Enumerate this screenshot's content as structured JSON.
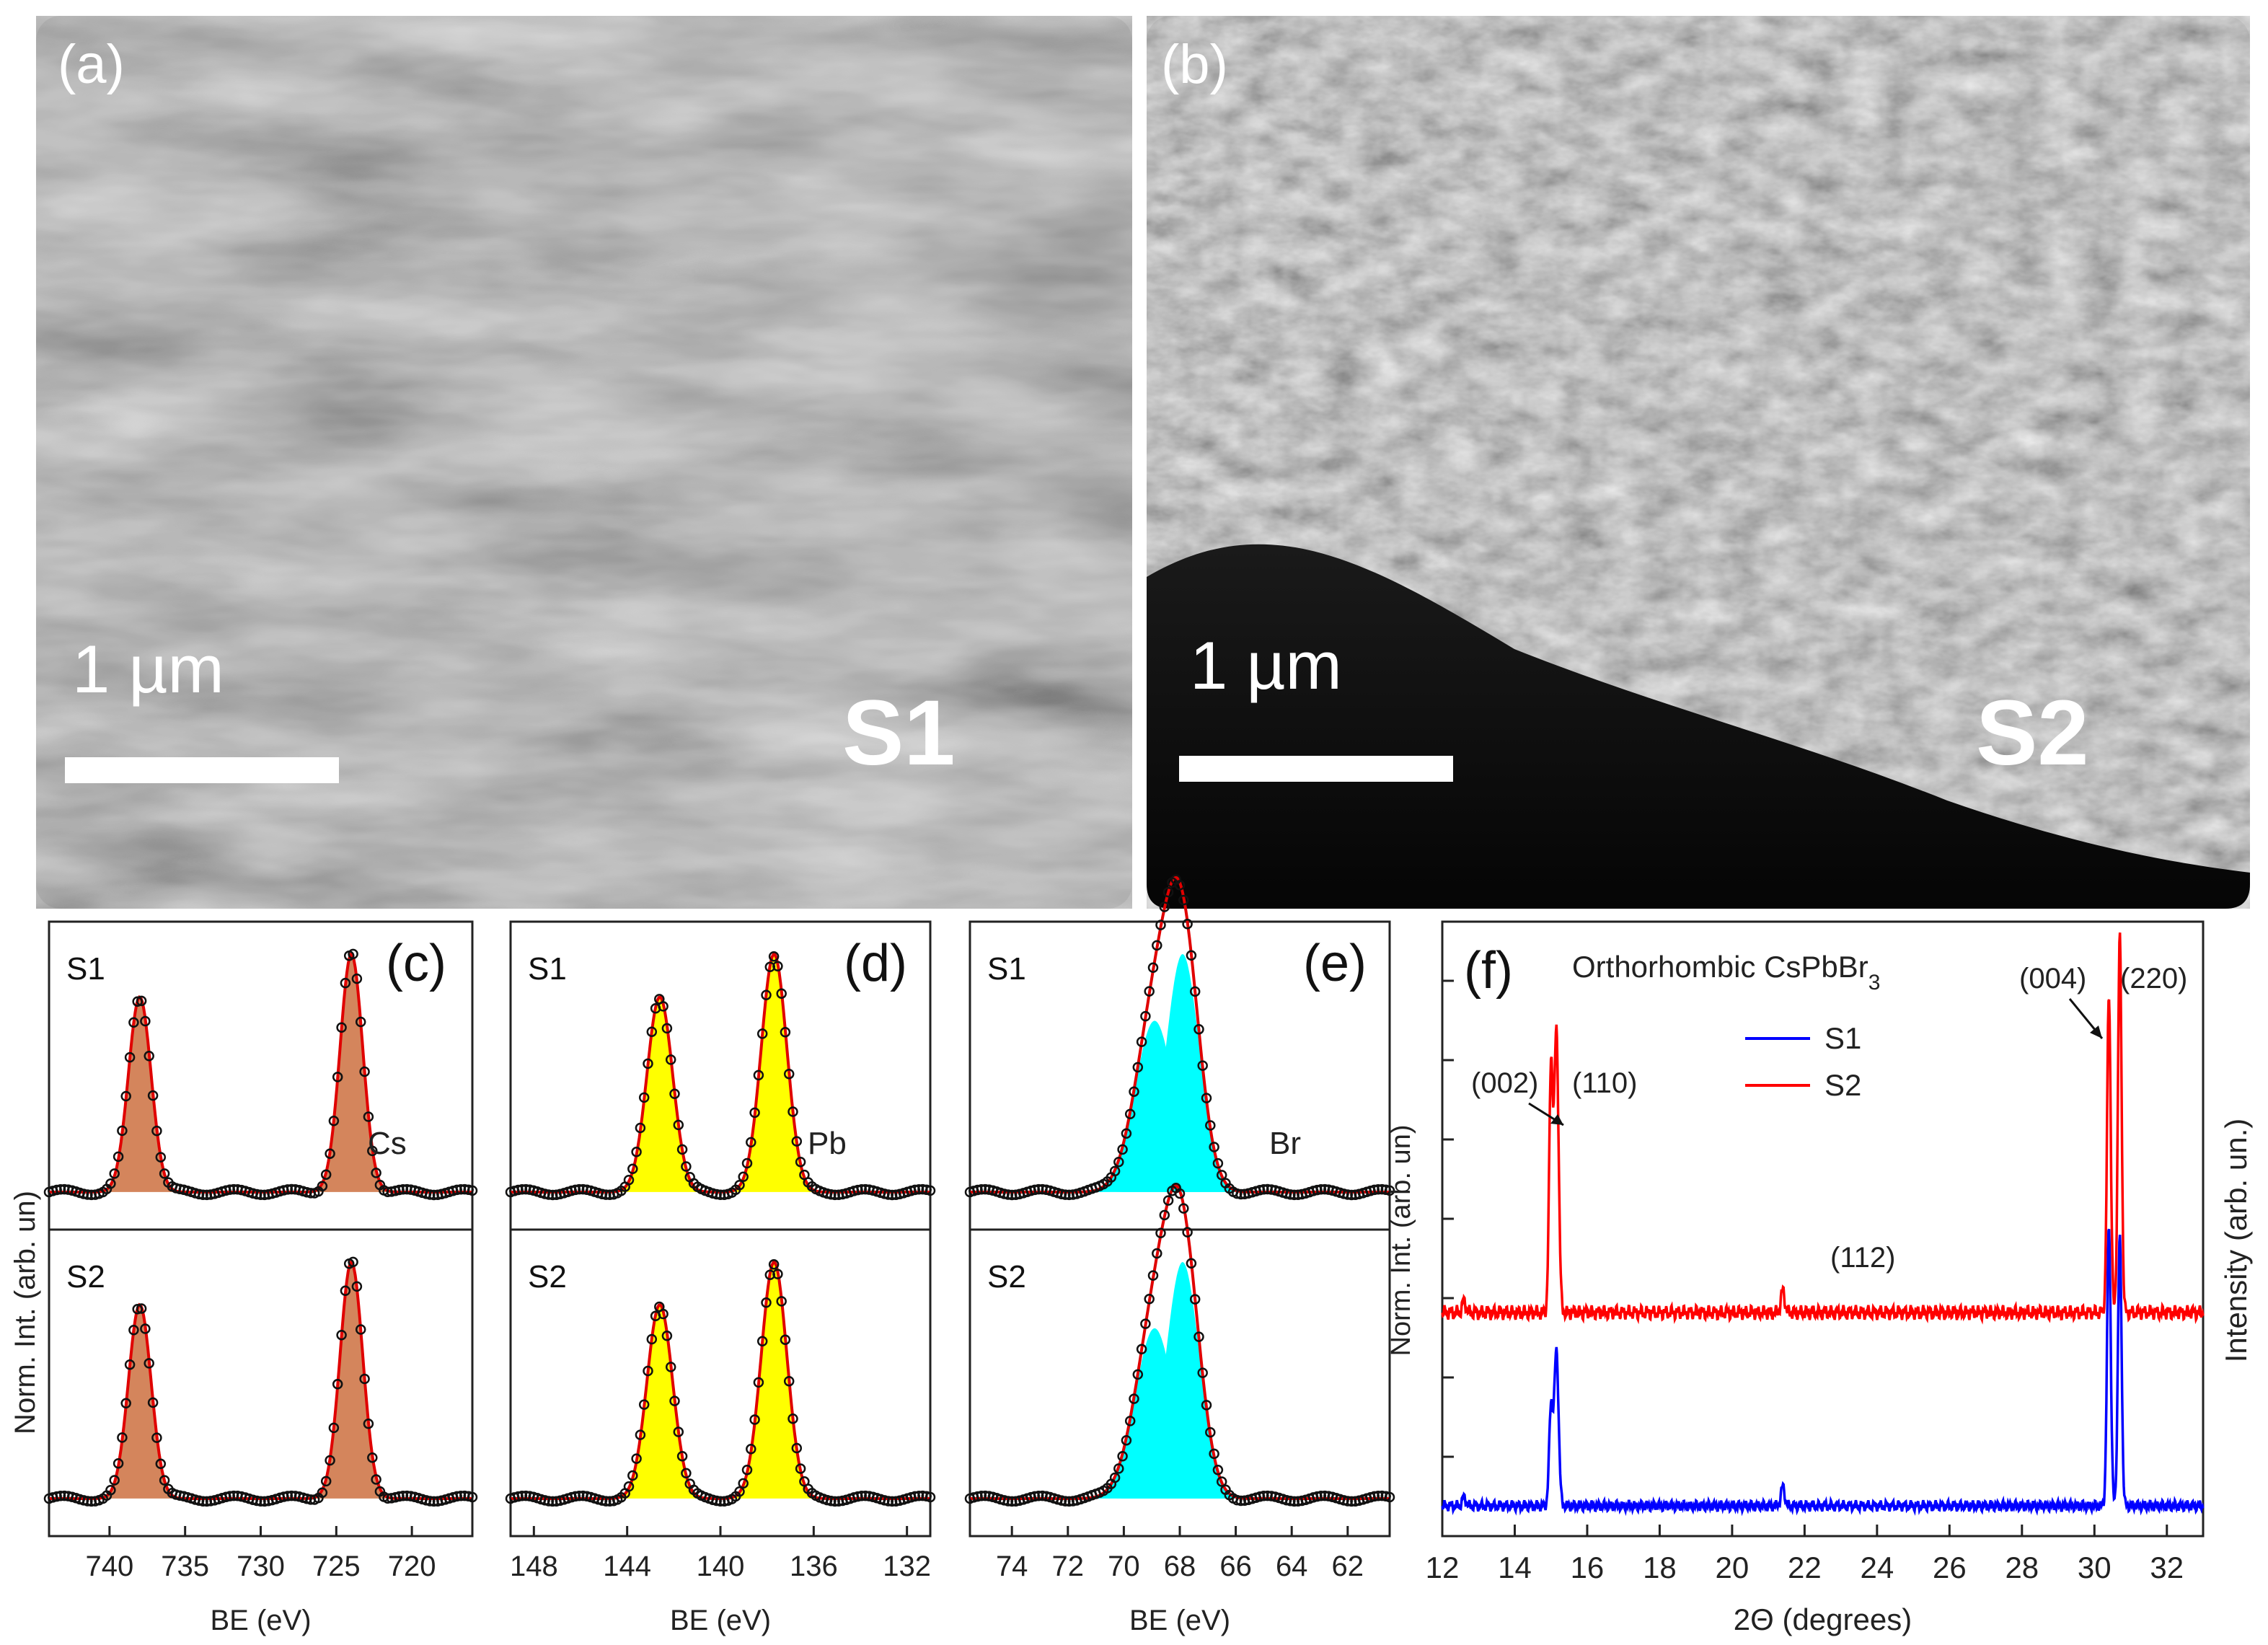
{
  "panels": {
    "a": {
      "label": "(a)",
      "scalebar": "1 µm",
      "sample": "S1"
    },
    "b": {
      "label": "(b)",
      "scalebar": "1 µm",
      "sample": "S2"
    },
    "c": {
      "label": "(c)",
      "element": "Cs",
      "top_sample": "S1",
      "bottom_sample": "S2",
      "ylabel": "Norm. Int. (arb. un)",
      "xlabel": "BE (eV)",
      "ticks": [
        "740",
        "735",
        "730",
        "725",
        "720"
      ],
      "tick_values": [
        740,
        735,
        730,
        725,
        720
      ],
      "xlim": [
        744,
        716
      ],
      "fill": "#d4855c",
      "peaks": [
        738.0,
        724.0
      ]
    },
    "d": {
      "label": "(d)",
      "element": "Pb",
      "top_sample": "S1",
      "bottom_sample": "S2",
      "xlabel": "BE (eV)",
      "ticks": [
        "148",
        "144",
        "140",
        "136",
        "132"
      ],
      "tick_values": [
        148,
        144,
        140,
        136,
        132
      ],
      "xlim": [
        149,
        131
      ],
      "fill": "#ffff00",
      "peaks": [
        142.6,
        137.7
      ]
    },
    "e": {
      "label": "(e)",
      "element": "Br",
      "top_sample": "S1",
      "bottom_sample": "S2",
      "xlabel": "BE (eV)",
      "ticks": [
        "74",
        "72",
        "70",
        "68",
        "66",
        "64",
        "62"
      ],
      "tick_values": [
        74,
        72,
        70,
        68,
        66,
        64,
        62
      ],
      "xlim": [
        75.5,
        60.5
      ],
      "fill": "#00ffff",
      "peaks": [
        68.9,
        67.9
      ]
    },
    "f": {
      "label": "(f)",
      "title": "Orthorhombic CsPbBr",
      "title_sub": "3",
      "ylabel_left": "Norm. Int. (arb. un)",
      "ylabel_right": "Intensity (arb. un.)",
      "xlabel": "2Θ (degrees)",
      "ticks": [
        "12",
        "14",
        "16",
        "18",
        "20",
        "22",
        "24",
        "26",
        "28",
        "30",
        "32"
      ],
      "tick_values": [
        12,
        14,
        16,
        18,
        20,
        22,
        24,
        26,
        28,
        30,
        32
      ],
      "xlim": [
        12,
        33
      ],
      "peak_labels": [
        "(002)",
        "(110)",
        "(112)",
        "(004)",
        "(220)"
      ],
      "legend": [
        "S1",
        "S2"
      ],
      "series_colors": [
        "#0000ff",
        "#ff0000"
      ]
    }
  },
  "chart_data": {
    "type": "line",
    "xlabel": "2Θ (degrees)",
    "ylabel": "Intensity (arb. un.)",
    "xlim": [
      12,
      33
    ],
    "series": [
      {
        "name": "S1",
        "x": [
          12.6,
          15.0,
          15.15,
          21.4,
          30.4,
          30.7
        ],
        "y": [
          0.03,
          0.35,
          0.55,
          0.07,
          1.0,
          0.95
        ]
      },
      {
        "name": "S2",
        "x": [
          12.6,
          15.0,
          15.15,
          21.4,
          30.4,
          30.7
        ],
        "y": [
          0.03,
          0.65,
          0.75,
          0.06,
          0.85,
          1.0
        ]
      }
    ]
  }
}
